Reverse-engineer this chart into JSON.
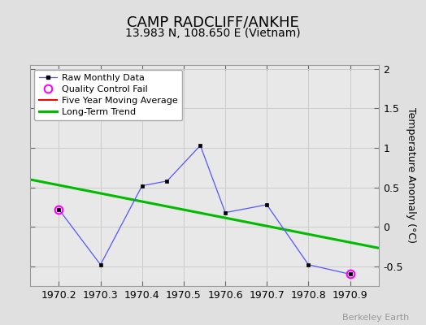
{
  "title": "CAMP RADCLIFF/ANKHE",
  "subtitle": "13.983 N, 108.650 E (Vietnam)",
  "watermark": "Berkeley Earth",
  "ylabel_right": "Temperature Anomaly (°C)",
  "xlim": [
    1970.13,
    1970.97
  ],
  "ylim": [
    -0.75,
    2.05
  ],
  "yticks": [
    -0.5,
    0.0,
    0.5,
    1.0,
    1.5,
    2.0
  ],
  "xticks": [
    1970.2,
    1970.3,
    1970.4,
    1970.5,
    1970.6,
    1970.7,
    1970.8,
    1970.9
  ],
  "raw_x": [
    1970.2,
    1970.3,
    1970.4,
    1970.46,
    1970.54,
    1970.6,
    1970.7,
    1970.8,
    1970.9
  ],
  "raw_y": [
    0.22,
    -0.48,
    0.52,
    0.58,
    1.03,
    0.18,
    0.28,
    -0.48,
    -0.6
  ],
  "qc_fail_indices": [
    0,
    8
  ],
  "trend_x": [
    1970.13,
    1970.97
  ],
  "trend_y": [
    0.6,
    -0.27
  ],
  "bg_color": "#e0e0e0",
  "plot_bg_color": "#e8e8e8",
  "raw_line_color": "#5555ff",
  "raw_marker_color": "#000000",
  "qc_marker_color": "#ff00ff",
  "trend_color": "#00bb00",
  "moving_avg_color": "#ff0000",
  "title_fontsize": 13,
  "subtitle_fontsize": 10,
  "tick_fontsize": 9,
  "ylabel_fontsize": 9,
  "legend_fontsize": 8,
  "grid_color": "#cccccc",
  "watermark_color": "#999999",
  "watermark_fontsize": 8
}
